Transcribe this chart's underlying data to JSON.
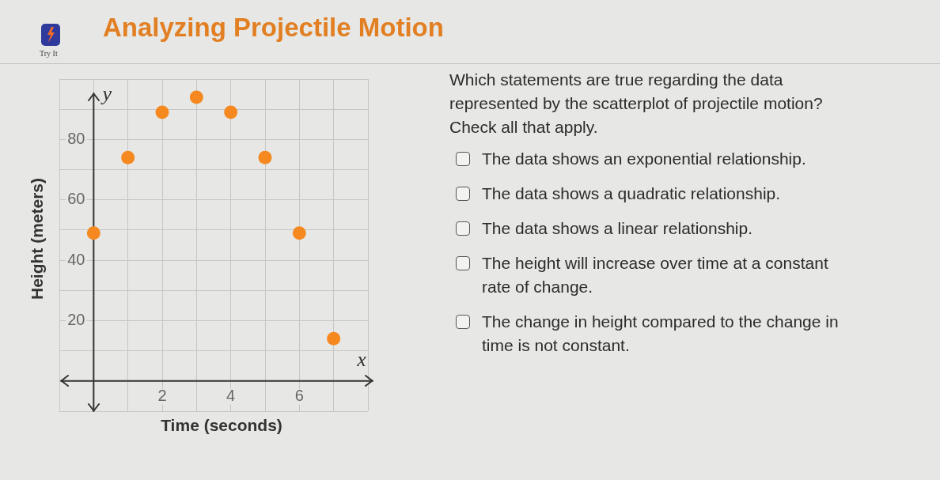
{
  "chart_data": {
    "type": "scatter",
    "title": "Analyzing Projectile Motion",
    "xlabel": "Time (seconds)",
    "ylabel": "Height (meters)",
    "x": [
      0,
      1,
      2,
      3,
      4,
      5,
      6,
      7
    ],
    "values": [
      49,
      74,
      89,
      94,
      89,
      74,
      49,
      14
    ],
    "color": "#f5891f",
    "marker": "circle",
    "grid": true,
    "xlim": [
      -1,
      8
    ],
    "ylim": [
      -10,
      100
    ],
    "xticks": [
      {
        "value": -1,
        "label": null
      },
      {
        "value": 0,
        "label": null
      },
      {
        "value": 1,
        "label": null
      },
      2,
      {
        "value": 3,
        "label": null
      },
      4,
      {
        "value": 5,
        "label": null
      },
      6,
      {
        "value": 7,
        "label": null
      },
      {
        "value": 8,
        "label": null
      }
    ],
    "yticks": [
      {
        "value": -10,
        "label": null
      },
      {
        "value": 0,
        "label": null
      },
      {
        "value": 10,
        "label": null
      },
      20,
      {
        "value": 30,
        "label": null
      },
      40,
      {
        "value": 50,
        "label": null
      },
      60,
      {
        "value": 70,
        "label": null
      },
      80,
      {
        "value": 90,
        "label": null
      },
      {
        "value": 100,
        "label": null
      }
    ],
    "annotations": [
      "x",
      "y",
      "Try It",
      "Which statements are true regarding the data represented by the scatterplot of projectile motion?",
      "Check all that apply.",
      "The data shows an exponential relationship.",
      "The data shows a quadratic relationship.",
      "The data shows a linear relationship.",
      "The height will increase over time at a constant rate of change.",
      "The change in height compared to the change in time is not constant."
    ]
  }
}
